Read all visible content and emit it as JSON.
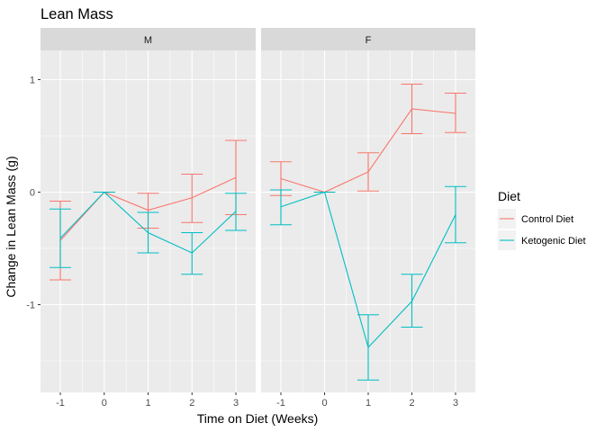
{
  "chart_data": {
    "type": "line",
    "title": "Lean Mass",
    "xlabel": "Time on Diet (Weeks)",
    "ylabel": "Change in Lean Mass (g)",
    "x": [
      -1,
      0,
      1,
      2,
      3
    ],
    "x_tick_labels": [
      "-1",
      "0",
      "1",
      "2",
      "3"
    ],
    "y_ticks": [
      -1,
      0,
      1
    ],
    "y_tick_labels": [
      "-1",
      "0",
      "1"
    ],
    "ylim": [
      -1.78,
      1.26
    ],
    "grid": true,
    "error_bars": true,
    "legend": {
      "title": "Diet",
      "position": "right",
      "entries": [
        "Control Diet",
        "Ketogenic Diet"
      ]
    },
    "colors": {
      "Control Diet": "#F8766D",
      "Ketogenic Diet": "#00BFC4",
      "panel_bg": "#EBEBEB",
      "strip_bg": "#D9D9D9",
      "grid": "#FFFFFF"
    },
    "panels": [
      {
        "label": "M",
        "series": [
          {
            "name": "Control Diet",
            "values": [
              -0.43,
              0.0,
              -0.16,
              -0.05,
              0.13
            ],
            "lower": [
              -0.78,
              0.0,
              -0.32,
              -0.27,
              -0.2
            ],
            "upper": [
              -0.08,
              0.0,
              -0.01,
              0.16,
              0.46
            ]
          },
          {
            "name": "Ketogenic Diet",
            "values": [
              -0.41,
              0.0,
              -0.36,
              -0.54,
              -0.17
            ],
            "lower": [
              -0.67,
              0.0,
              -0.54,
              -0.73,
              -0.34
            ],
            "upper": [
              -0.15,
              0.0,
              -0.18,
              -0.36,
              -0.01
            ]
          }
        ]
      },
      {
        "label": "F",
        "series": [
          {
            "name": "Control Diet",
            "values": [
              0.12,
              0.0,
              0.18,
              0.74,
              0.7
            ],
            "lower": [
              -0.03,
              0.0,
              0.01,
              0.52,
              0.53
            ],
            "upper": [
              0.27,
              0.0,
              0.35,
              0.96,
              0.88
            ]
          },
          {
            "name": "Ketogenic Diet",
            "values": [
              -0.13,
              0.0,
              -1.38,
              -0.97,
              -0.2
            ],
            "lower": [
              -0.29,
              0.0,
              -1.67,
              -1.2,
              -0.45
            ],
            "upper": [
              0.02,
              0.0,
              -1.09,
              -0.73,
              0.05
            ]
          }
        ]
      }
    ]
  }
}
